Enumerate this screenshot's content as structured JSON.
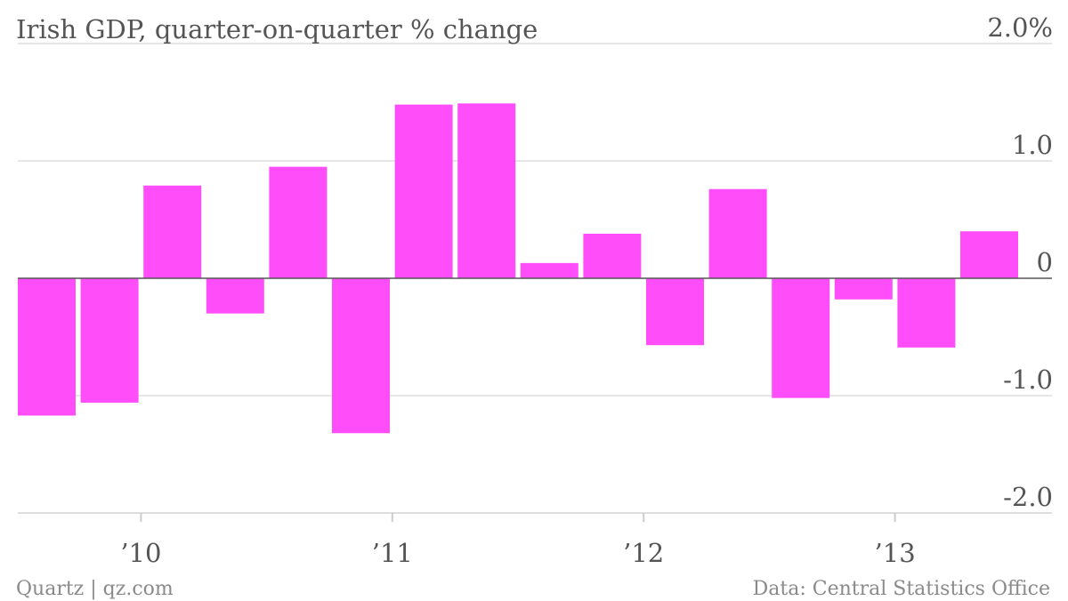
{
  "chart_data": {
    "type": "bar",
    "title": "Irish GDP, quarter-on-quarter % change",
    "categories": [
      "Q1 2010",
      "Q2 2010",
      "Q3 2010",
      "Q4 2010",
      "Q1 2011",
      "Q2 2011",
      "Q3 2011",
      "Q4 2011",
      "Q1 2012",
      "Q2 2012",
      "Q3 2012",
      "Q4 2012",
      "Q1 2013",
      "Q2 2013",
      "Q3 2013",
      "Q4 2013"
    ],
    "values": [
      -1.17,
      -1.06,
      0.79,
      -0.3,
      0.95,
      -1.32,
      1.48,
      1.49,
      0.13,
      0.38,
      -0.57,
      0.76,
      -1.02,
      -0.18,
      -0.59,
      0.4
    ],
    "ylim": [
      -2.0,
      2.0
    ],
    "y_ticks": [
      {
        "value": 2.0,
        "label": "2.0%"
      },
      {
        "value": 1.0,
        "label": "1.0"
      },
      {
        "value": 0,
        "label": "0"
      },
      {
        "value": -1.0,
        "label": "-1.0"
      },
      {
        "value": -2.0,
        "label": "-2.0"
      }
    ],
    "x_ticks": [
      {
        "label": "’10",
        "position": 1.5
      },
      {
        "label": "’11",
        "position": 5.5
      },
      {
        "label": "’12",
        "position": 9.5
      },
      {
        "label": "’13",
        "position": 13.5
      }
    ],
    "grid": true,
    "bar_color": "#ff4ef9",
    "gridline_color": "#dddddd",
    "zero_line_color": "#555555"
  },
  "footer": {
    "source_left": "Quartz | qz.com",
    "source_right": "Data: Central Statistics Office"
  }
}
